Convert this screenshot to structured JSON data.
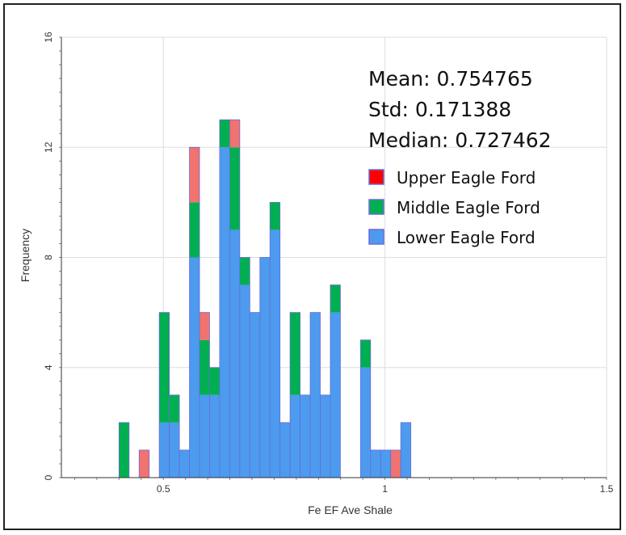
{
  "chart_data": {
    "type": "bar",
    "subtype": "stacked-histogram",
    "xlabel": "Fe EF Ave Shale",
    "ylabel": "Frequency",
    "xlim": [
      0.27,
      1.5
    ],
    "ylim": [
      0,
      16
    ],
    "bin_width": 0.0227,
    "x_ticks": [
      0.5,
      1,
      1.5
    ],
    "y_ticks": [
      0,
      4,
      8,
      12,
      16
    ],
    "grid": true,
    "stats": [
      "Mean: 0.754765",
      "Std: 0.171388",
      "Median: 0.727462"
    ],
    "bin_starts": [
      0.4,
      0.4227,
      0.4454,
      0.4681,
      0.4908,
      0.5135,
      0.5362,
      0.5589,
      0.5816,
      0.6043,
      0.627,
      0.6497,
      0.6724,
      0.6951,
      0.7178,
      0.7405,
      0.7632,
      0.7859,
      0.8086,
      0.8313,
      0.854,
      0.8767,
      0.8994,
      0.9221,
      0.9448,
      0.9675,
      0.9902,
      1.0129,
      1.0356,
      1.0583,
      1.081,
      1.1037,
      1.1264,
      1.1491,
      1.1718,
      1.1945
    ],
    "series": [
      {
        "name": "Lower Eagle Ford",
        "color": "#4c9bef",
        "values": [
          0,
          0,
          0,
          0,
          2,
          2,
          1,
          8,
          3,
          3,
          12,
          9,
          7,
          6,
          8,
          9,
          2,
          3,
          3,
          6,
          3,
          6,
          0,
          0,
          4,
          1,
          1,
          0,
          2,
          0,
          0,
          0,
          0,
          0,
          0,
          0
        ]
      },
      {
        "name": "Middle Eagle Ford",
        "color": "#00b050",
        "values": [
          2,
          0,
          0,
          0,
          4,
          1,
          0,
          2,
          2,
          1,
          1,
          3,
          1,
          0,
          0,
          1,
          0,
          3,
          0,
          0,
          0,
          1,
          0,
          0,
          1,
          0,
          0,
          0,
          0,
          0,
          0,
          0,
          0,
          0,
          0,
          0
        ]
      },
      {
        "name": "Upper Eagle Ford",
        "color": "#f0736f",
        "values": [
          0,
          0,
          1,
          0,
          0,
          0,
          0,
          2,
          1,
          0,
          0,
          1,
          0,
          0,
          0,
          0,
          0,
          0,
          0,
          0,
          0,
          0,
          0,
          0,
          0,
          0,
          0,
          1,
          0,
          0,
          0,
          0,
          0,
          0,
          0,
          0
        ]
      }
    ],
    "legend": {
      "placement": "top-right",
      "entries": [
        {
          "label": "Upper Eagle Ford",
          "color": "#ff0000"
        },
        {
          "label": "Middle Eagle Ford",
          "color": "#00b050"
        },
        {
          "label": "Lower Eagle Ford",
          "color": "#4c9bef"
        }
      ]
    }
  }
}
